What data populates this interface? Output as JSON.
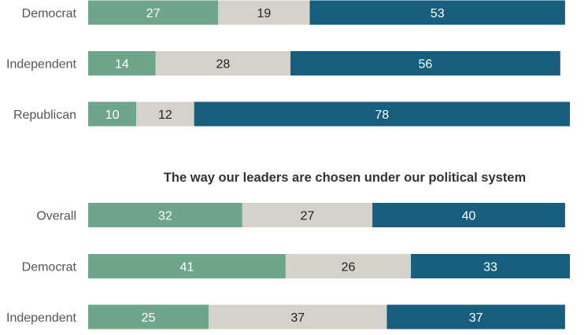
{
  "chart_data": [
    {
      "type": "bar",
      "stacked": true,
      "orientation": "horizontal",
      "title": "",
      "categories": [
        "Democrat",
        "Independent",
        "Republican"
      ],
      "series": [
        {
          "values": [
            27,
            14,
            10
          ],
          "color": "#6fa58a"
        },
        {
          "values": [
            19,
            28,
            12
          ],
          "color": "#d5d1cb"
        },
        {
          "values": [
            53,
            56,
            78
          ],
          "color": "#175e7f"
        }
      ]
    },
    {
      "type": "bar",
      "stacked": true,
      "orientation": "horizontal",
      "title": "The way our leaders are chosen under our political system",
      "categories": [
        "Overall",
        "Democrat",
        "Independent"
      ],
      "series": [
        {
          "values": [
            32,
            41,
            25
          ],
          "color": "#6fa58a"
        },
        {
          "values": [
            27,
            26,
            37
          ],
          "color": "#d5d1cb"
        },
        {
          "values": [
            40,
            33,
            37
          ],
          "color": "#175e7f"
        }
      ]
    }
  ]
}
